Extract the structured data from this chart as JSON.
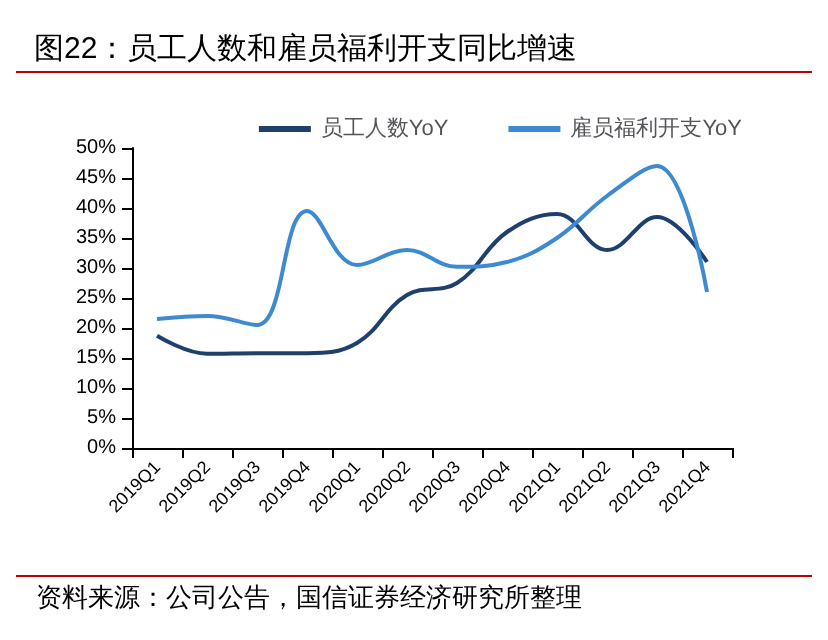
{
  "chart_data": {
    "type": "line",
    "title": "图22：员工人数和雇员福利开支同比增速",
    "annotations": [
      "资料来源：公司公告，国信证券经济研究所整理"
    ],
    "categories": [
      "2019Q1",
      "2019Q2",
      "2019Q3",
      "2019Q4",
      "2020Q1",
      "2020Q2",
      "2020Q3",
      "2020Q4",
      "2021Q1",
      "2021Q2",
      "2021Q3",
      "2021Q4"
    ],
    "series": [
      {
        "name": "员工人数YoY",
        "color": "#1f3f6e",
        "values": [
          18.7,
          15.7,
          15.8,
          15.8,
          17.5,
          25.5,
          27.5,
          36,
          39,
          33,
          38.5,
          31
        ]
      },
      {
        "name": "雇员福利开支YoY",
        "color": "#3d8ad0",
        "values": [
          21.5,
          22,
          20.5,
          39.5,
          30.5,
          33,
          30.2,
          31,
          35,
          42,
          47,
          26
        ]
      }
    ],
    "ylim": [
      0,
      50
    ],
    "yticks": [
      {
        "value": 0,
        "label": "0%"
      },
      {
        "value": 5,
        "label": "5%"
      },
      {
        "value": 10,
        "label": "10%"
      },
      {
        "value": 15,
        "label": "15%"
      },
      {
        "value": 20,
        "label": "20%"
      },
      {
        "value": 25,
        "label": "25%"
      },
      {
        "value": 30,
        "label": "30%"
      },
      {
        "value": 35,
        "label": "35%"
      },
      {
        "value": 40,
        "label": "40%"
      },
      {
        "value": 45,
        "label": "45%"
      },
      {
        "value": 50,
        "label": "50%"
      }
    ],
    "grid": false,
    "legend": "top right",
    "marker": "none",
    "line_style": "solid"
  }
}
